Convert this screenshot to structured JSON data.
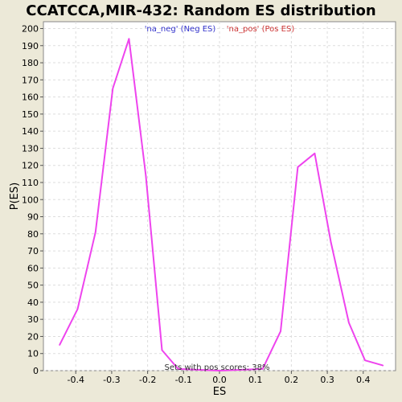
{
  "chart_data": {
    "type": "line",
    "title": "CCATCCA,MIR-432: Random ES distribution",
    "xlabel": "ES",
    "ylabel": "P(ES)",
    "xlim": [
      -0.49,
      0.49
    ],
    "ylim": [
      0,
      204
    ],
    "x_ticks": [
      -0.4,
      -0.3,
      -0.2,
      -0.1,
      0.0,
      0.1,
      0.2,
      0.3,
      0.4
    ],
    "x_tick_labels": [
      "-0.4",
      "-0.3",
      "-0.2",
      "-0.1",
      "0.0",
      "0.1",
      "0.2",
      "0.3",
      "0.4"
    ],
    "y_ticks": [
      0,
      10,
      20,
      30,
      40,
      50,
      60,
      70,
      80,
      90,
      100,
      110,
      120,
      130,
      140,
      150,
      160,
      170,
      180,
      190,
      200
    ],
    "y_tick_labels": [
      "0",
      "10",
      "20",
      "30",
      "40",
      "50",
      "60",
      "70",
      "80",
      "90",
      "100",
      "110",
      "120",
      "130",
      "140",
      "150",
      "160",
      "170",
      "180",
      "190",
      "200"
    ],
    "grid": true,
    "legend": {
      "placement": "top-center",
      "entries": [
        {
          "label": "'na_neg' (Neg ES)",
          "color": "#3333cc"
        },
        {
          "label": "'na_pos' (Pos ES)",
          "color": "#cc3333"
        }
      ]
    },
    "annotation": "Sets with pos scores: 38%",
    "series": [
      {
        "color": "#ee44ee",
        "x": [
          -0.445,
          -0.395,
          -0.345,
          -0.297,
          -0.252,
          -0.205,
          -0.16,
          -0.115,
          0.0,
          0.12,
          0.17,
          0.218,
          0.265,
          0.31,
          0.36,
          0.405,
          0.455
        ],
        "y": [
          15,
          36,
          81,
          165,
          194,
          114,
          12,
          1,
          0,
          1,
          23,
          119,
          127,
          75,
          28,
          6,
          3
        ]
      }
    ]
  }
}
